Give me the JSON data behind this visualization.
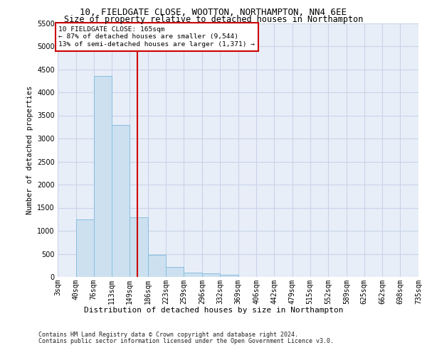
{
  "title1": "10, FIELDGATE CLOSE, WOOTTON, NORTHAMPTON, NN4 6EE",
  "title2": "Size of property relative to detached houses in Northampton",
  "xlabel": "Distribution of detached houses by size in Northampton",
  "ylabel": "Number of detached properties",
  "footer1": "Contains HM Land Registry data © Crown copyright and database right 2024.",
  "footer2": "Contains public sector information licensed under the Open Government Licence v3.0.",
  "bin_edges": [
    3,
    40,
    76,
    113,
    149,
    186,
    223,
    259,
    296,
    332,
    369,
    406,
    442,
    479,
    515,
    552,
    589,
    625,
    662,
    698,
    735
  ],
  "bin_labels": [
    "3sqm",
    "40sqm",
    "76sqm",
    "113sqm",
    "149sqm",
    "186sqm",
    "223sqm",
    "259sqm",
    "296sqm",
    "332sqm",
    "369sqm",
    "406sqm",
    "442sqm",
    "479sqm",
    "515sqm",
    "552sqm",
    "589sqm",
    "625sqm",
    "662sqm",
    "698sqm",
    "735sqm"
  ],
  "bar_heights": [
    0,
    1250,
    4350,
    3300,
    1300,
    480,
    210,
    90,
    70,
    50,
    0,
    0,
    0,
    0,
    0,
    0,
    0,
    0,
    0,
    0
  ],
  "bar_color": "#cce0f0",
  "bar_edge_color": "#88bfdf",
  "grid_color": "#c8d4e8",
  "bg_color": "#e8eef8",
  "vline_x": 165,
  "vline_color": "#cc0000",
  "ylim_max": 5500,
  "yticks": [
    0,
    500,
    1000,
    1500,
    2000,
    2500,
    3000,
    3500,
    4000,
    4500,
    5000,
    5500
  ],
  "annotation_line1": "10 FIELDGATE CLOSE: 165sqm",
  "annotation_line2": "← 87% of detached houses are smaller (9,544)",
  "annotation_line3": "13% of semi-detached houses are larger (1,371) →",
  "ann_box_edgecolor": "#cc0000",
  "title1_fontsize": 9,
  "title2_fontsize": 8.5,
  "ylabel_fontsize": 7.5,
  "xlabel_fontsize": 8,
  "tick_fontsize": 7,
  "ann_fontsize": 6.8,
  "footer_fontsize": 6
}
